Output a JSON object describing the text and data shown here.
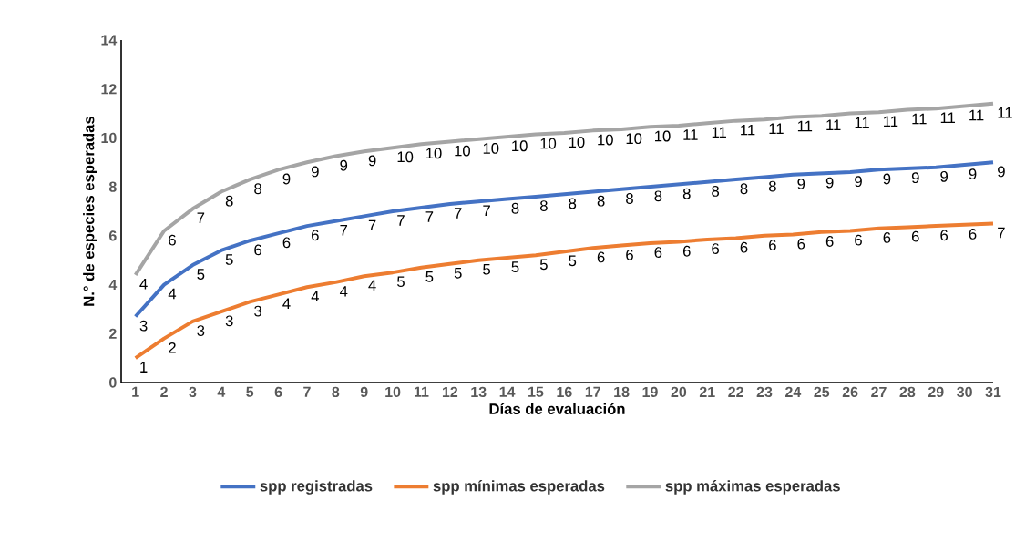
{
  "chart_data": {
    "type": "line",
    "xlabel": "Días de evaluación",
    "ylabel": "N.° de especies esperadas",
    "categories": [
      "1",
      "2",
      "3",
      "4",
      "5",
      "6",
      "7",
      "8",
      "9",
      "10",
      "11",
      "12",
      "13",
      "14",
      "15",
      "16",
      "17",
      "18",
      "19",
      "20",
      "21",
      "22",
      "23",
      "24",
      "25",
      "26",
      "27",
      "28",
      "29",
      "30",
      "31"
    ],
    "ylim": [
      0,
      14
    ],
    "yticks": [
      0,
      2,
      4,
      6,
      8,
      10,
      12,
      14
    ],
    "legend": "bottom",
    "marker": "none",
    "line_style": "solid",
    "series": [
      {
        "name": "spp registradas",
        "color": "#4472c4",
        "values": [
          2.7,
          4.0,
          4.8,
          5.4,
          5.8,
          6.1,
          6.4,
          6.6,
          6.8,
          7.0,
          7.15,
          7.3,
          7.4,
          7.5,
          7.6,
          7.7,
          7.8,
          7.9,
          8.0,
          8.1,
          8.2,
          8.3,
          8.4,
          8.5,
          8.55,
          8.6,
          8.7,
          8.75,
          8.8,
          8.9,
          9.0
        ],
        "value_labels": [
          "3",
          "4",
          "5",
          "5",
          "6",
          "6",
          "6",
          "7",
          "7",
          "7",
          "7",
          "7",
          "7",
          "8",
          "8",
          "8",
          "8",
          "8",
          "8",
          "8",
          "8",
          "8",
          "8",
          "9",
          "9",
          "9",
          "9",
          "9",
          "9",
          "9",
          "9"
        ]
      },
      {
        "name": "spp mínimas esperadas",
        "color": "#ed7d31",
        "values": [
          1.0,
          1.8,
          2.5,
          2.9,
          3.3,
          3.6,
          3.9,
          4.1,
          4.35,
          4.5,
          4.7,
          4.85,
          5.0,
          5.1,
          5.2,
          5.35,
          5.5,
          5.6,
          5.7,
          5.75,
          5.85,
          5.9,
          6.0,
          6.05,
          6.15,
          6.2,
          6.3,
          6.35,
          6.4,
          6.45,
          6.5
        ],
        "value_labels": [
          "1",
          "2",
          "3",
          "3",
          "3",
          "4",
          "4",
          "4",
          "4",
          "5",
          "5",
          "5",
          "5",
          "5",
          "5",
          "5",
          "6",
          "6",
          "6",
          "6",
          "6",
          "6",
          "6",
          "6",
          "6",
          "6",
          "6",
          "6",
          "6",
          "6",
          "7"
        ]
      },
      {
        "name": "spp máximas esperadas",
        "color": "#a5a5a5",
        "values": [
          4.4,
          6.2,
          7.1,
          7.8,
          8.3,
          8.7,
          9.0,
          9.25,
          9.45,
          9.6,
          9.75,
          9.85,
          9.95,
          10.05,
          10.15,
          10.2,
          10.3,
          10.35,
          10.45,
          10.5,
          10.6,
          10.7,
          10.75,
          10.85,
          10.9,
          11.0,
          11.05,
          11.15,
          11.2,
          11.3,
          11.4
        ],
        "value_labels": [
          "4",
          "6",
          "7",
          "8",
          "8",
          "9",
          "9",
          "9",
          "9",
          "10",
          "10",
          "10",
          "10",
          "10",
          "10",
          "10",
          "10",
          "10",
          "10",
          "11",
          "11",
          "11",
          "11",
          "11",
          "11",
          "11",
          "11",
          "11",
          "11",
          "11",
          "11"
        ]
      }
    ]
  }
}
